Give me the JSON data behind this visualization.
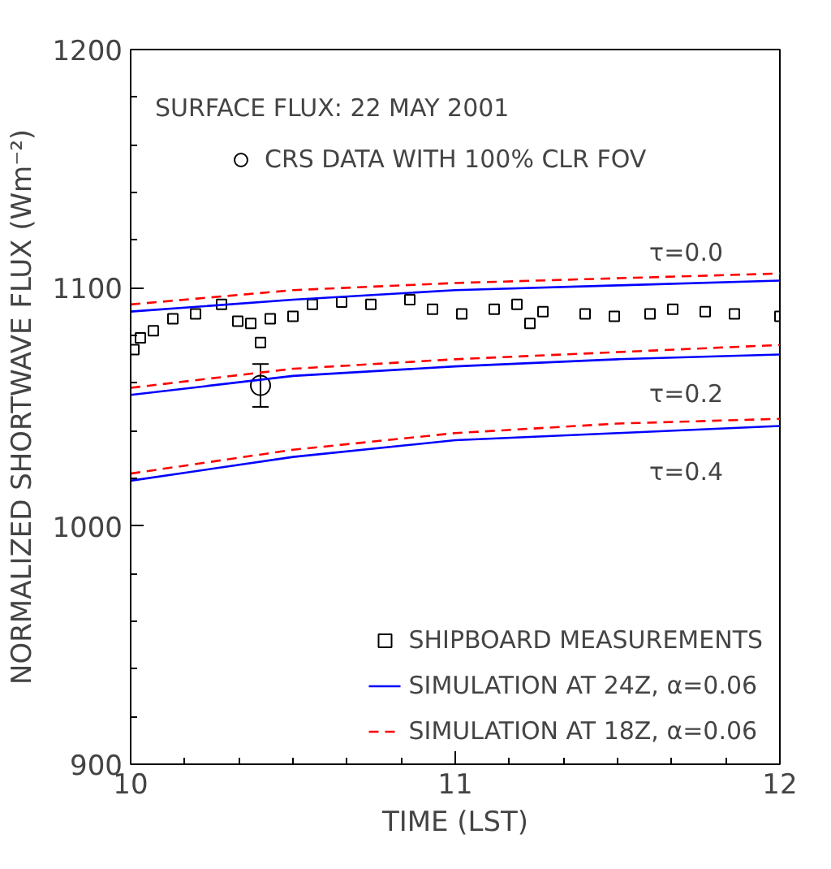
{
  "chart_data": {
    "type": "line",
    "xlabel": "TIME (LST)",
    "ylabel": "NORMALIZED SHORTWAVE FLUX (Wm⁻²)",
    "xlim": [
      10,
      12
    ],
    "xticks": [
      10,
      11,
      12
    ],
    "ylim": [
      900,
      1200
    ],
    "yticks": [
      900,
      1000,
      1100,
      1200
    ],
    "grid": false,
    "legend": "bottom right",
    "annotations": [
      "SURFACE FLUX: 22 MAY 2001",
      "τ=0.0",
      "τ=0.2",
      "τ=0.4"
    ],
    "series": [
      {
        "name": "SHIPBOARD MEASUREMENTS",
        "type": "scatter",
        "marker": "square",
        "color": "#000000",
        "x": [
          10.01,
          10.03,
          10.07,
          10.13,
          10.2,
          10.28,
          10.33,
          10.37,
          10.4,
          10.43,
          10.5,
          10.56,
          10.65,
          10.74,
          10.86,
          10.93,
          11.02,
          11.12,
          11.19,
          11.23,
          11.27,
          11.4,
          11.49,
          11.6,
          11.67,
          11.77,
          11.86,
          12.0
        ],
        "values": [
          1074,
          1079,
          1082,
          1087,
          1089,
          1093,
          1086,
          1085,
          1077,
          1087,
          1088,
          1093,
          1094,
          1093,
          1095,
          1091,
          1089,
          1091,
          1093,
          1085,
          1090,
          1089,
          1088,
          1089,
          1091,
          1090,
          1089,
          1088
        ]
      },
      {
        "name": "CRS DATA WITH 100% CLR FOV",
        "type": "scatter",
        "marker": "circle",
        "color": "#000000",
        "x": [
          10.4
        ],
        "values": [
          1059
        ],
        "errors": [
          9
        ]
      },
      {
        "name": "SIMULATION AT 24Z, α=0.06",
        "color": "#0000ff",
        "line_style": "solid",
        "x": [
          10,
          10.5,
          11,
          11.5,
          12
        ],
        "values": [
          1090,
          1095,
          1099,
          1101,
          1103
        ]
      },
      {
        "color": "#0000ff",
        "line_style": "solid",
        "x": [
          10,
          10.5,
          11,
          11.5,
          12
        ],
        "values": [
          1055,
          1063,
          1067,
          1070,
          1072
        ]
      },
      {
        "color": "#0000ff",
        "line_style": "solid",
        "x": [
          10,
          10.5,
          11,
          11.5,
          12
        ],
        "values": [
          1019,
          1029,
          1036,
          1039,
          1042
        ]
      },
      {
        "name": "SIMULATION AT 18Z, α=0.06",
        "color": "#ff0000",
        "line_style": "dashed",
        "x": [
          10,
          10.5,
          11,
          11.5,
          12
        ],
        "values": [
          1093,
          1099,
          1102,
          1104,
          1106
        ]
      },
      {
        "color": "#ff0000",
        "line_style": "dashed",
        "x": [
          10,
          10.5,
          11,
          11.5,
          12
        ],
        "values": [
          1058,
          1066,
          1070,
          1073,
          1076
        ]
      },
      {
        "color": "#ff0000",
        "line_style": "dashed",
        "x": [
          10,
          10.5,
          11,
          11.5,
          12
        ],
        "values": [
          1022,
          1032,
          1039,
          1043,
          1045
        ]
      }
    ]
  }
}
